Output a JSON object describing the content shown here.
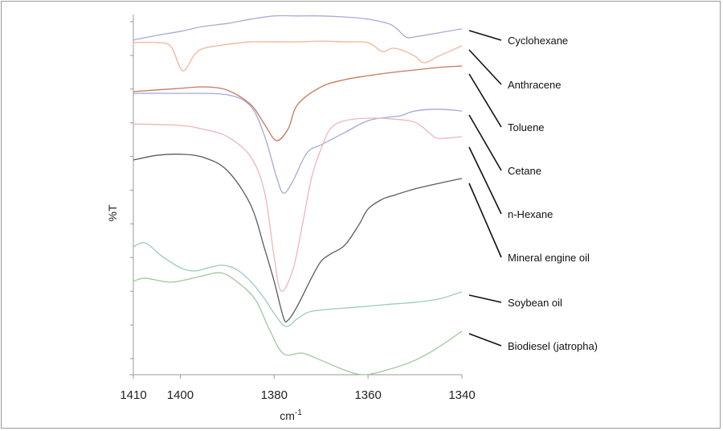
{
  "chart_data": {
    "type": "line",
    "title": "",
    "xlabel": "cm",
    "xlabel_superscript": "-1",
    "ylabel": "%T",
    "xlim": [
      1410,
      1340
    ],
    "ylim": [
      0,
      100
    ],
    "x_reversed": true,
    "x_ticks": [
      1410,
      1400,
      1380,
      1360,
      1340
    ],
    "x_tick_labels": [
      "1410",
      "1400",
      "1380",
      "1360",
      "1340"
    ],
    "y_tick_labels_shown": false,
    "grid": false,
    "legend": "right (leader lines)",
    "series": [
      {
        "name": "Cyclohexane",
        "color": "#a9abd8",
        "x": [
          1410,
          1405,
          1400,
          1395,
          1390,
          1385,
          1380,
          1375,
          1370,
          1365,
          1360,
          1355,
          1352,
          1350,
          1345,
          1340
        ],
        "y": [
          92.9,
          94.2,
          95.3,
          96.7,
          97.5,
          98.7,
          99.6,
          99.6,
          99.6,
          99.3,
          98.7,
          97.1,
          93.8,
          93.8,
          94.9,
          96.0
        ]
      },
      {
        "name": "Anthracene",
        "color": "#f2b49a",
        "x": [
          1410,
          1405,
          1402,
          1399.5,
          1397,
          1395,
          1390,
          1385,
          1380,
          1375,
          1370,
          1365,
          1360,
          1357,
          1355,
          1353,
          1350,
          1348,
          1345,
          1340
        ],
        "y": [
          92.2,
          92.2,
          91.1,
          84.4,
          88.8,
          90.6,
          91.7,
          92.4,
          92.4,
          92.4,
          92.6,
          92.4,
          92.2,
          89.7,
          90.6,
          90.2,
          88.4,
          86.6,
          88.4,
          91.3
        ]
      },
      {
        "name": "Toluene",
        "color": "#c8765e",
        "x": [
          1410,
          1400,
          1395,
          1390,
          1385,
          1382,
          1379.5,
          1377,
          1375,
          1370,
          1365,
          1360,
          1355,
          1350,
          1345,
          1340
        ],
        "y": [
          78.6,
          79.5,
          79.9,
          79.0,
          75.0,
          69.4,
          65.0,
          68.3,
          75.0,
          79.9,
          81.9,
          83.0,
          83.9,
          84.6,
          85.3,
          85.7
        ]
      },
      {
        "name": "Cetane",
        "color": "#a4a9d8",
        "x": [
          1410,
          1400,
          1390,
          1385,
          1382,
          1379.5,
          1378,
          1376,
          1373,
          1370,
          1365,
          1360,
          1355,
          1353,
          1350,
          1345,
          1340
        ],
        "y": [
          78.1,
          78.1,
          77.7,
          74.5,
          66.1,
          54.9,
          50.4,
          53.8,
          61.6,
          63.8,
          67.2,
          70.5,
          71.6,
          71.9,
          73.2,
          73.7,
          73.2
        ]
      },
      {
        "name": "n-Hexane",
        "color": "#efb6b8",
        "x": [
          1410,
          1400,
          1395,
          1390,
          1385,
          1382,
          1380,
          1378.5,
          1376,
          1374,
          1372,
          1370,
          1368,
          1365,
          1360,
          1355,
          1350,
          1347,
          1345,
          1340
        ],
        "y": [
          69.6,
          69.2,
          68.1,
          66.1,
          60.5,
          50.4,
          32.6,
          23.2,
          29.2,
          41.5,
          54.9,
          62.7,
          68.3,
          70.5,
          71.2,
          71.0,
          70.1,
          67.2,
          65.6,
          66.1
        ]
      },
      {
        "name": "Mineral engine oil",
        "color": "#5a5a6a",
        "x": [
          1410,
          1405,
          1400,
          1395,
          1390,
          1385,
          1382,
          1380,
          1378,
          1377,
          1375,
          1372,
          1370,
          1368,
          1365,
          1362,
          1360,
          1357,
          1355,
          1350,
          1345,
          1340
        ],
        "y": [
          59.6,
          60.9,
          61.2,
          60.3,
          56.7,
          47.1,
          34.8,
          25.9,
          15.8,
          15.2,
          19.2,
          27.0,
          31.5,
          33.5,
          35.9,
          41.5,
          46.0,
          48.7,
          49.6,
          51.6,
          53.1,
          54.5
        ]
      },
      {
        "name": "Soybean oil",
        "color": "#9ccac2",
        "x": [
          1410,
          1407.5,
          1404,
          1400,
          1397,
          1394,
          1391,
          1388,
          1385,
          1382,
          1380,
          1377.5,
          1375,
          1372,
          1365,
          1360,
          1355,
          1350,
          1345,
          1340
        ],
        "y": [
          35.5,
          36.6,
          33.0,
          29.7,
          28.8,
          29.7,
          30.4,
          29.2,
          25.9,
          21.0,
          17.0,
          13.4,
          15.6,
          17.6,
          18.5,
          19.0,
          19.6,
          20.1,
          21.0,
          23.0
        ]
      },
      {
        "name": "Biodiesel (jatropha)",
        "color": "#9fc89c",
        "x": [
          1410,
          1407.5,
          1402,
          1396,
          1391.5,
          1388,
          1384,
          1381,
          1378,
          1374,
          1370,
          1365,
          1361,
          1356,
          1350,
          1345,
          1340
        ],
        "y": [
          25.9,
          26.8,
          25.7,
          27.2,
          28.3,
          25.9,
          20.8,
          12.5,
          5.8,
          6.0,
          4.0,
          1.3,
          0.0,
          1.3,
          4.0,
          7.6,
          12.1
        ]
      }
    ]
  }
}
